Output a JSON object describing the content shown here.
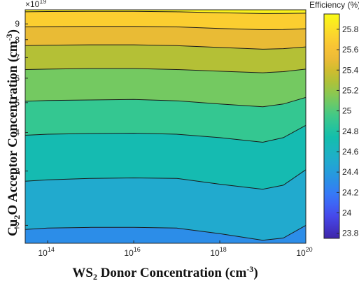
{
  "chart_data": {
    "type": "contour",
    "title": "",
    "xlabel": {
      "main": "WS",
      "sub": "2",
      "rest": " Donor Concentration (cm",
      "sup": "-3",
      "close": ")"
    },
    "ylabel": {
      "main": "Cu",
      "sub": "2",
      "rest": "O Acceptor Concentration (cm",
      "sup": "-3",
      "close": ")"
    },
    "x_scale": "log",
    "xlim": [
      30000000000000.0,
      1e+20
    ],
    "x_ticks": [
      {
        "base": "10",
        "exp": "14",
        "value": 100000000000000.0
      },
      {
        "base": "10",
        "exp": "16",
        "value": 1e+16
      },
      {
        "base": "10",
        "exp": "18",
        "value": 1e+18
      },
      {
        "base": "10",
        "exp": "20",
        "value": 1e+20
      }
    ],
    "y_scale": "log",
    "ylim": [
      1.75e+19,
      1e+20
    ],
    "y_multiplier": {
      "base": "×10",
      "exp": "19"
    },
    "y_ticks": [
      {
        "label": "2",
        "value": 2e+19
      },
      {
        "label": "3",
        "value": 3e+19
      },
      {
        "label": "4",
        "value": 4e+19
      },
      {
        "label": "5",
        "value": 5e+19
      },
      {
        "label": "6",
        "value": 6e+19
      },
      {
        "label": "7",
        "value": 7e+19
      },
      {
        "label": "8",
        "value": 8e+19
      },
      {
        "label": "9",
        "value": 9e+19
      }
    ],
    "colorbar": {
      "label": "Efficiency (%)",
      "range": [
        23.75,
        25.95
      ],
      "ticks": [
        "23.8",
        "24",
        "24.2",
        "24.4",
        "24.6",
        "24.8",
        "25",
        "25.2",
        "25.4",
        "25.6",
        "25.8"
      ]
    },
    "contour_levels": [
      24.4,
      24.6,
      24.8,
      25.0,
      25.2,
      25.4,
      25.6,
      25.8
    ],
    "contour_lines": [
      {
        "level": 24.4,
        "points": [
          [
            30000000000000.0,
            1.94e+19
          ],
          [
            100000000000000.0,
            1.96e+19
          ],
          [
            1000000000000000.0,
            1.97e+19
          ],
          [
            1e+16,
            1.97e+19
          ],
          [
            1e+17,
            1.96e+19
          ],
          [
            1e+18,
            1.88e+19
          ],
          [
            1e+19,
            1.79e+19
          ],
          [
            3e+19,
            1.82e+19
          ],
          [
            1e+20,
            2e+19
          ]
        ]
      },
      {
        "level": 24.6,
        "points": [
          [
            30000000000000.0,
            2.78e+19
          ],
          [
            100000000000000.0,
            2.81e+19
          ],
          [
            1000000000000000.0,
            2.84e+19
          ],
          [
            1e+16,
            2.85e+19
          ],
          [
            1e+17,
            2.84e+19
          ],
          [
            1e+18,
            2.72e+19
          ],
          [
            1e+19,
            2.62e+19
          ],
          [
            3e+19,
            2.7e+19
          ],
          [
            1e+20,
            3.03e+19
          ]
        ]
      },
      {
        "level": 24.8,
        "points": [
          [
            30000000000000.0,
            3.92e+19
          ],
          [
            100000000000000.0,
            3.95e+19
          ],
          [
            1000000000000000.0,
            3.97e+19
          ],
          [
            1e+16,
            3.98e+19
          ],
          [
            1e+17,
            3.95e+19
          ],
          [
            1e+18,
            3.85e+19
          ],
          [
            1e+19,
            3.72e+19
          ],
          [
            3e+19,
            3.85e+19
          ],
          [
            1e+20,
            4.22e+19
          ]
        ]
      },
      {
        "level": 25.0,
        "points": [
          [
            30000000000000.0,
            5.05e+19
          ],
          [
            100000000000000.0,
            5.08e+19
          ],
          [
            1000000000000000.0,
            5.1e+19
          ],
          [
            1e+16,
            5.12e+19
          ],
          [
            1e+17,
            5.07e+19
          ],
          [
            1e+18,
            4.95e+19
          ],
          [
            1e+19,
            4.85e+19
          ],
          [
            3e+19,
            4.95e+19
          ],
          [
            1e+20,
            5.2e+19
          ]
        ]
      },
      {
        "level": 25.2,
        "points": [
          [
            30000000000000.0,
            6.4e+19
          ],
          [
            100000000000000.0,
            6.42e+19
          ],
          [
            1000000000000000.0,
            6.45e+19
          ],
          [
            1e+16,
            6.45e+19
          ],
          [
            1e+17,
            6.4e+19
          ],
          [
            1e+18,
            6.32e+19
          ],
          [
            1e+19,
            6.25e+19
          ],
          [
            3e+19,
            6.3e+19
          ],
          [
            1e+20,
            6.42e+19
          ]
        ]
      },
      {
        "level": 25.4,
        "points": [
          [
            30000000000000.0,
            7.65e+19
          ],
          [
            100000000000000.0,
            7.68e+19
          ],
          [
            1000000000000000.0,
            7.7e+19
          ],
          [
            1e+16,
            7.7e+19
          ],
          [
            1e+17,
            7.65e+19
          ],
          [
            1e+18,
            7.55e+19
          ],
          [
            1e+19,
            7.45e+19
          ],
          [
            3e+19,
            7.48e+19
          ],
          [
            1e+20,
            7.58e+19
          ]
        ]
      },
      {
        "level": 25.6,
        "points": [
          [
            30000000000000.0,
            8.8e+19
          ],
          [
            100000000000000.0,
            8.82e+19
          ],
          [
            1000000000000000.0,
            8.83e+19
          ],
          [
            1e+16,
            8.83e+19
          ],
          [
            1e+17,
            8.8e+19
          ],
          [
            1e+18,
            8.7e+19
          ],
          [
            1e+19,
            8.62e+19
          ],
          [
            3e+19,
            8.63e+19
          ],
          [
            1e+20,
            8.68e+19
          ]
        ]
      },
      {
        "level": 25.8,
        "points": [
          [
            30000000000000.0,
            9.85e+19
          ],
          [
            100000000000000.0,
            9.87e+19
          ],
          [
            1000000000000000.0,
            9.88e+19
          ],
          [
            1e+16,
            9.88e+19
          ],
          [
            1e+17,
            9.85e+19
          ],
          [
            1e+18,
            9.78e+19
          ],
          [
            1e+19,
            9.72e+19
          ],
          [
            3e+19,
            9.73e+19
          ],
          [
            1e+20,
            9.75e+19
          ]
        ]
      }
    ],
    "grid": false,
    "colormap": "parula",
    "colors": [
      "#3e26a8",
      "#4744e8",
      "#3a73fc",
      "#2796e1",
      "#1fb0c8",
      "#12bfaa",
      "#3fc989",
      "#86c954",
      "#c3bd2c",
      "#f6ba38",
      "#fcd52e",
      "#f9fb15"
    ]
  }
}
